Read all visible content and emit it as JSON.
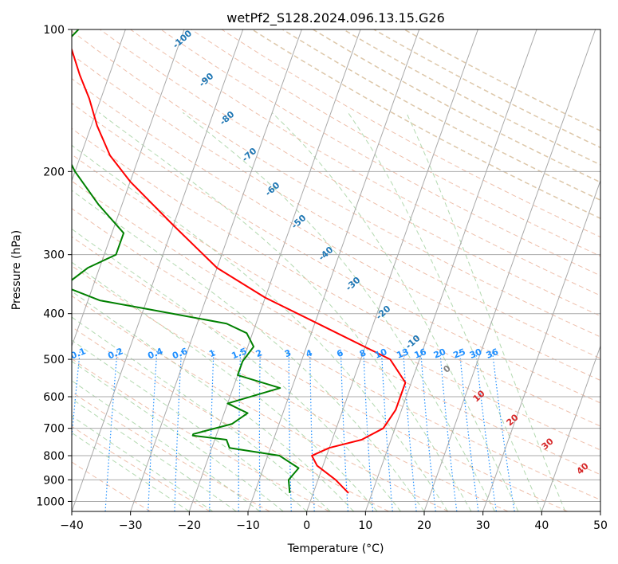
{
  "chart_data": {
    "type": "line",
    "title": "wetPf2_S128.2024.096.13.15.G26",
    "xlabel": "Temperature (°C)",
    "ylabel": "Pressure (hPa)",
    "xlim": [
      -40,
      50
    ],
    "ylim": [
      1050,
      100
    ],
    "y_scale": "log",
    "x_ticks": [
      "−40",
      "−30",
      "−20",
      "−10",
      "0",
      "10",
      "20",
      "30",
      "40",
      "50"
    ],
    "y_ticks": [
      "100",
      "200",
      "300",
      "400",
      "500",
      "600",
      "700",
      "800",
      "900",
      "1000"
    ],
    "grid": true,
    "skew": true,
    "series": [
      {
        "name": "",
        "color": "#ff0000",
        "points": [
          {
            "T": 6,
            "p": 960
          },
          {
            "T": 3,
            "p": 900
          },
          {
            "T": -1,
            "p": 840
          },
          {
            "T": -2.5,
            "p": 800
          },
          {
            "T": 0,
            "p": 770
          },
          {
            "T": 5,
            "p": 740
          },
          {
            "T": 8,
            "p": 700
          },
          {
            "T": 9,
            "p": 640
          },
          {
            "T": 9,
            "p": 560
          },
          {
            "T": 5,
            "p": 500
          },
          {
            "T": -7.5,
            "p": 430
          },
          {
            "T": -20,
            "p": 370
          },
          {
            "T": -30,
            "p": 320
          },
          {
            "T": -40,
            "p": 260
          },
          {
            "T": -50,
            "p": 210
          },
          {
            "T": -55,
            "p": 185
          },
          {
            "T": -59,
            "p": 160
          },
          {
            "T": -62,
            "p": 140
          },
          {
            "T": -65,
            "p": 125
          },
          {
            "T": -68,
            "p": 110
          },
          {
            "T": -71,
            "p": 100
          }
        ]
      },
      {
        "name": "",
        "color": "#008000",
        "points": [
          {
            "T": -4,
            "p": 960
          },
          {
            "T": -5,
            "p": 900
          },
          {
            "T": -4,
            "p": 850
          },
          {
            "T": -8,
            "p": 800
          },
          {
            "T": -17,
            "p": 770
          },
          {
            "T": -18,
            "p": 740
          },
          {
            "T": -24,
            "p": 725
          },
          {
            "T": -24,
            "p": 720
          },
          {
            "T": -18,
            "p": 685
          },
          {
            "T": -16,
            "p": 650
          },
          {
            "T": -20,
            "p": 620
          },
          {
            "T": -12,
            "p": 575
          },
          {
            "T": -20,
            "p": 540
          },
          {
            "T": -20,
            "p": 505
          },
          {
            "T": -19,
            "p": 470
          },
          {
            "T": -21,
            "p": 440
          },
          {
            "T": -25,
            "p": 420
          },
          {
            "T": -40,
            "p": 390
          },
          {
            "T": -48,
            "p": 375
          },
          {
            "T": -55,
            "p": 350
          },
          {
            "T": -52,
            "p": 320
          },
          {
            "T": -48,
            "p": 300
          },
          {
            "T": -48,
            "p": 270
          },
          {
            "T": -54,
            "p": 235
          },
          {
            "T": -60,
            "p": 200
          },
          {
            "T": -64,
            "p": 175
          },
          {
            "T": -78,
            "p": 155
          },
          {
            "T": -80,
            "p": 148
          },
          {
            "T": -73,
            "p": 135
          },
          {
            "T": -67,
            "p": 125
          },
          {
            "T": -71,
            "p": 115
          },
          {
            "T": -68,
            "p": 100
          }
        ]
      }
    ],
    "mixing_ratio_labels": [
      "0.1",
      "0.2",
      "0.4",
      "0.6",
      "1",
      "1.5",
      "2",
      "3",
      "4",
      "6",
      "8",
      "10",
      "13",
      "16",
      "20",
      "25",
      "30",
      "36"
    ],
    "mixing_ratio_values": [
      0.1,
      0.2,
      0.4,
      0.6,
      1,
      1.5,
      2,
      3,
      4,
      6,
      8,
      10,
      13,
      16,
      20,
      25,
      30,
      36
    ],
    "dry_adiabat_labels": [
      "-100",
      "-90",
      "-80",
      "-70",
      "-60",
      "-50",
      "-40",
      "-30",
      "-20",
      "-10"
    ],
    "moist_adiabat_labels": [
      "0",
      "10",
      "20",
      "30",
      "40"
    ]
  }
}
